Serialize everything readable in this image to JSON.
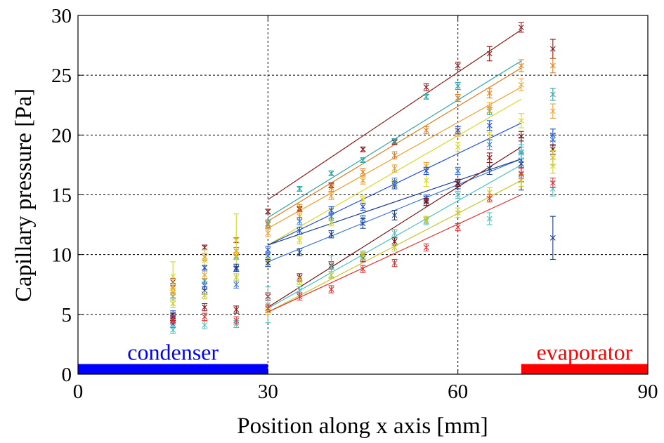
{
  "chart_data": {
    "type": "scatter",
    "xlabel": "Position along x axis [mm]",
    "ylabel": "Capillary pressure [Pa]",
    "xlim": [
      0,
      90
    ],
    "ylim": [
      0,
      30
    ],
    "x_ticks": [
      "0",
      "30",
      "60",
      "90"
    ],
    "y_ticks": [
      "0",
      "5",
      "10",
      "15",
      "20",
      "25",
      "30"
    ],
    "grid": true,
    "grid_x": [
      30,
      60
    ],
    "grid_y": [
      5,
      10,
      15,
      20,
      25
    ],
    "regions": [
      {
        "label": "condenser",
        "from": 0,
        "to": 30,
        "color": "#0000ff"
      },
      {
        "label": "evaporator",
        "from": 70,
        "to": 90,
        "color": "#ff0000"
      }
    ],
    "series": [
      {
        "color": "#8b1a1a",
        "points": [
          [
            15,
            7.7,
            0.3
          ],
          [
            20,
            10.6,
            0.2
          ],
          [
            25,
            11.2,
            0.2
          ],
          [
            30,
            13.6,
            0.2
          ],
          [
            35,
            13.8,
            0.2
          ],
          [
            40,
            15.8,
            0.2
          ],
          [
            45,
            18.8,
            0.2
          ],
          [
            50,
            19.4,
            0.2
          ],
          [
            55,
            24.0,
            0.3
          ],
          [
            60,
            25.8,
            0.3
          ],
          [
            65,
            26.8,
            0.6
          ],
          [
            70,
            29.0,
            0.4
          ],
          [
            75,
            27.2,
            0.8
          ]
        ],
        "fit": [
          [
            30,
            14.6
          ],
          [
            70,
            28.8
          ]
        ]
      },
      {
        "color": "#2ca5a5",
        "points": [
          [
            15,
            6.5,
            0.3
          ],
          [
            20,
            7.8,
            0.2
          ],
          [
            25,
            9.8,
            0.2
          ],
          [
            30,
            12.6,
            0.3
          ],
          [
            35,
            15.5,
            0.2
          ],
          [
            40,
            16.8,
            0.2
          ],
          [
            45,
            17.9,
            0.2
          ],
          [
            50,
            19.5,
            0.2
          ],
          [
            55,
            23.2,
            0.2
          ],
          [
            60,
            24.1,
            0.3
          ],
          [
            65,
            22.0,
            0.3
          ],
          [
            70,
            18.5,
            0.5
          ],
          [
            75,
            23.4,
            0.5
          ]
        ],
        "fit": [
          [
            30,
            13.1
          ],
          [
            70,
            26.2
          ]
        ]
      },
      {
        "color": "#e07b1a",
        "points": [
          [
            15,
            7.2,
            0.4
          ],
          [
            20,
            9.8,
            0.3
          ],
          [
            25,
            10.3,
            0.3
          ],
          [
            30,
            12.5,
            0.3
          ],
          [
            35,
            13.9,
            0.3
          ],
          [
            40,
            15.6,
            0.3
          ],
          [
            45,
            16.9,
            0.3
          ],
          [
            50,
            18.3,
            0.3
          ],
          [
            55,
            20.4,
            0.3
          ],
          [
            60,
            23.1,
            0.3
          ],
          [
            65,
            23.5,
            0.4
          ],
          [
            70,
            25.8,
            0.5
          ],
          [
            75,
            25.8,
            0.6
          ]
        ],
        "fit": [
          [
            30,
            12.8
          ],
          [
            70,
            25.6
          ]
        ]
      },
      {
        "color": "#f0a028",
        "points": [
          [
            15,
            6.8,
            0.4
          ],
          [
            20,
            8.3,
            0.3
          ],
          [
            25,
            9.9,
            0.3
          ],
          [
            30,
            11.8,
            0.3
          ],
          [
            35,
            13.2,
            0.3
          ],
          [
            40,
            14.9,
            0.3
          ],
          [
            45,
            16.2,
            0.3
          ],
          [
            50,
            17.2,
            0.3
          ],
          [
            55,
            17.4,
            0.3
          ],
          [
            60,
            20.2,
            0.3
          ],
          [
            65,
            22.3,
            0.4
          ],
          [
            70,
            24.2,
            0.5
          ],
          [
            75,
            22.0,
            0.6
          ]
        ],
        "fit": [
          [
            30,
            12.2
          ],
          [
            70,
            24.0
          ]
        ]
      },
      {
        "color": "#d8d820",
        "points": [
          [
            15,
            8.2,
            1.2
          ],
          [
            20,
            9.5,
            0.9
          ],
          [
            25,
            11.2,
            2.2
          ],
          [
            30,
            9.6,
            0.3
          ],
          [
            35,
            11.2,
            0.3
          ],
          [
            40,
            12.7,
            0.3
          ],
          [
            45,
            14.6,
            0.3
          ],
          [
            50,
            15.9,
            0.3
          ],
          [
            55,
            16.2,
            0.5
          ],
          [
            60,
            19.0,
            0.4
          ],
          [
            65,
            20.1,
            0.5
          ],
          [
            70,
            21.2,
            0.6
          ],
          [
            75,
            17.4,
            0.6
          ]
        ],
        "fit": [
          [
            30,
            10.8
          ],
          [
            70,
            23.0
          ]
        ]
      },
      {
        "color": "#1f4fd8",
        "points": [
          [
            15,
            5.0,
            0.3
          ],
          [
            20,
            8.9,
            0.2
          ],
          [
            25,
            8.8,
            0.2
          ],
          [
            30,
            10.4,
            0.3
          ],
          [
            35,
            12.0,
            0.3
          ],
          [
            40,
            13.7,
            0.3
          ],
          [
            45,
            14.0,
            0.3
          ],
          [
            50,
            15.8,
            0.3
          ],
          [
            55,
            17.0,
            0.3
          ],
          [
            60,
            20.4,
            0.3
          ],
          [
            65,
            20.8,
            0.4
          ],
          [
            70,
            17.9,
            0.6
          ],
          [
            75,
            20.0,
            0.5
          ]
        ],
        "fit": [
          [
            30,
            10.8
          ],
          [
            70,
            21.0
          ]
        ]
      },
      {
        "color": "#3a78e0",
        "points": [
          [
            15,
            4.2,
            0.3
          ],
          [
            20,
            7.4,
            0.3
          ],
          [
            25,
            7.5,
            0.3
          ],
          [
            30,
            9.9,
            0.3
          ],
          [
            35,
            12.8,
            0.3
          ],
          [
            40,
            13.2,
            0.3
          ],
          [
            45,
            13.0,
            0.3
          ],
          [
            50,
            16.1,
            0.3
          ],
          [
            55,
            14.7,
            0.3
          ],
          [
            60,
            17.0,
            0.3
          ],
          [
            65,
            19.2,
            0.4
          ],
          [
            70,
            16.7,
            0.6
          ],
          [
            75,
            19.6,
            0.5
          ]
        ],
        "fit": [
          [
            30,
            9.4
          ],
          [
            70,
            18.0
          ]
        ]
      },
      {
        "color": "#1c3e8c",
        "points": [
          [
            15,
            4.5,
            0.3
          ],
          [
            20,
            7.0,
            0.3
          ],
          [
            25,
            8.9,
            0.3
          ],
          [
            30,
            9.3,
            0.3
          ],
          [
            35,
            10.2,
            0.3
          ],
          [
            40,
            11.7,
            0.3
          ],
          [
            45,
            12.6,
            0.4
          ],
          [
            50,
            13.3,
            0.4
          ],
          [
            55,
            14.5,
            0.4
          ],
          [
            60,
            15.9,
            0.4
          ],
          [
            65,
            17.2,
            0.5
          ],
          [
            70,
            17.6,
            2.2
          ],
          [
            75,
            11.4,
            1.8
          ]
        ],
        "fit": [
          [
            30,
            10.8
          ],
          [
            70,
            18.0
          ]
        ]
      },
      {
        "color": "#7a1010",
        "points": [
          [
            15,
            4.8,
            0.3
          ],
          [
            20,
            5.6,
            0.3
          ],
          [
            25,
            5.4,
            0.3
          ],
          [
            30,
            6.5,
            0.3
          ],
          [
            35,
            8.1,
            0.3
          ],
          [
            40,
            9.1,
            0.3
          ],
          [
            45,
            9.7,
            0.3
          ],
          [
            50,
            11.1,
            0.3
          ],
          [
            55,
            14.4,
            0.3
          ],
          [
            60,
            16.0,
            0.3
          ],
          [
            65,
            18.1,
            0.4
          ],
          [
            70,
            19.9,
            0.4
          ],
          [
            75,
            18.8,
            0.4
          ]
        ],
        "fit": [
          [
            30,
            5.6
          ],
          [
            70,
            19.0
          ]
        ]
      },
      {
        "color": "#4fc0c0",
        "points": [
          [
            15,
            3.7,
            0.3
          ],
          [
            20,
            4.1,
            0.3
          ],
          [
            25,
            4.2,
            0.3
          ],
          [
            30,
            5.8,
            1.5
          ],
          [
            35,
            7.0,
            0.3
          ],
          [
            40,
            9.0,
            0.9
          ],
          [
            45,
            10.0,
            0.3
          ],
          [
            50,
            11.8,
            0.3
          ],
          [
            55,
            12.8,
            0.3
          ],
          [
            60,
            15.0,
            0.3
          ],
          [
            65,
            13.0,
            0.5
          ],
          [
            70,
            18.6,
            0.6
          ],
          [
            75,
            15.5,
            0.6
          ]
        ],
        "fit": [
          [
            30,
            5.5
          ],
          [
            70,
            17.5
          ]
        ]
      },
      {
        "color": "#c8c828",
        "points": [
          [
            15,
            5.9,
            0.3
          ],
          [
            20,
            6.6,
            0.3
          ],
          [
            25,
            8.1,
            0.3
          ],
          [
            30,
            5.3,
            0.3
          ],
          [
            35,
            7.8,
            0.3
          ],
          [
            40,
            8.3,
            0.3
          ],
          [
            45,
            9.9,
            0.3
          ],
          [
            50,
            10.6,
            0.3
          ],
          [
            55,
            12.9,
            0.3
          ],
          [
            60,
            13.5,
            0.4
          ],
          [
            65,
            15.2,
            0.4
          ],
          [
            70,
            16.2,
            0.5
          ],
          [
            75,
            18.1,
            0.6
          ]
        ],
        "fit": [
          [
            30,
            5.2
          ],
          [
            70,
            16.2
          ]
        ]
      },
      {
        "color": "#e83030",
        "points": [
          [
            15,
            4.6,
            0.3
          ],
          [
            20,
            4.8,
            0.3
          ],
          [
            25,
            4.5,
            0.3
          ],
          [
            30,
            5.5,
            0.3
          ],
          [
            35,
            6.5,
            0.3
          ],
          [
            40,
            7.1,
            0.3
          ],
          [
            45,
            8.8,
            0.3
          ],
          [
            50,
            9.3,
            0.3
          ],
          [
            55,
            10.6,
            0.3
          ],
          [
            60,
            12.3,
            0.3
          ],
          [
            65,
            14.7,
            0.3
          ],
          [
            70,
            16.8,
            0.4
          ],
          [
            75,
            16.0,
            0.4
          ]
        ],
        "fit": [
          [
            30,
            5.2
          ],
          [
            70,
            15.0
          ]
        ]
      }
    ]
  }
}
